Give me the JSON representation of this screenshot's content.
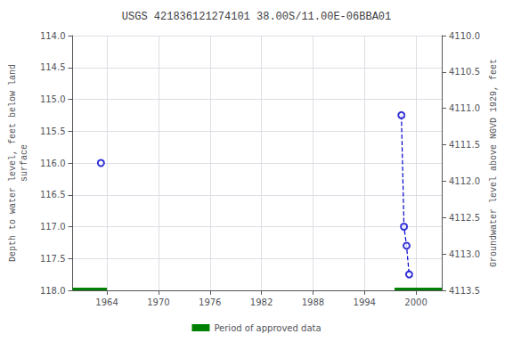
{
  "chart_data": {
    "type": "scatter",
    "title": "USGS 421836121274101 38.00S/11.00E-06BBA01",
    "ylabel": "Depth to water level, feet below land\nsurface",
    "y2label": "Groundwater level above NGVD 1929, feet",
    "xlim": [
      1960,
      2003
    ],
    "xticks": [
      1964,
      1970,
      1976,
      1982,
      1988,
      1994,
      2000
    ],
    "ylim": [
      118.0,
      114.0
    ],
    "yticks": [
      {
        "value": 114.0,
        "label": "114.0"
      },
      {
        "value": 114.5,
        "label": "114.5"
      },
      {
        "value": 115.0,
        "label": "115.0"
      },
      {
        "value": 115.5,
        "label": "115.5"
      },
      {
        "value": 116.0,
        "label": "116.0"
      },
      {
        "value": 116.5,
        "label": "116.5"
      },
      {
        "value": 117.0,
        "label": "117.0"
      },
      {
        "value": 117.5,
        "label": "117.5"
      },
      {
        "value": 118.0,
        "label": "118.0"
      }
    ],
    "y2lim": [
      4113.5,
      4110.0
    ],
    "y2ticks": [
      {
        "value": 4110.0,
        "label": "4110.0"
      },
      {
        "value": 4110.5,
        "label": "4110.5"
      },
      {
        "value": 4111.0,
        "label": "4111.0"
      },
      {
        "value": 4111.5,
        "label": "4111.5"
      },
      {
        "value": 4112.0,
        "label": "4112.0"
      },
      {
        "value": 4112.5,
        "label": "4112.5"
      },
      {
        "value": 4113.0,
        "label": "4113.0"
      },
      {
        "value": 4113.5,
        "label": "4113.5"
      }
    ],
    "grid": true,
    "legend": "bottom",
    "series": [
      {
        "type": "line",
        "line_style": "dashed",
        "color": "#0000cc",
        "x": [
          1998.3,
          1998.6,
          1998.9,
          1999.2
        ],
        "values": [
          115.25,
          117.0,
          117.3,
          117.75
        ]
      },
      {
        "type": "scatter",
        "marker": "circle_open",
        "color": "#0000cc",
        "x": [
          1963.3,
          1998.3,
          1998.6,
          1998.9,
          1999.2
        ],
        "values": [
          116.0,
          115.25,
          117.0,
          117.3,
          117.75
        ]
      },
      {
        "type": "bar",
        "name": "Period of approved data",
        "color": "#008000",
        "y": 118.0,
        "start": [
          1960.0,
          1997.5
        ],
        "width": [
          4.0,
          5.5
        ]
      }
    ]
  }
}
